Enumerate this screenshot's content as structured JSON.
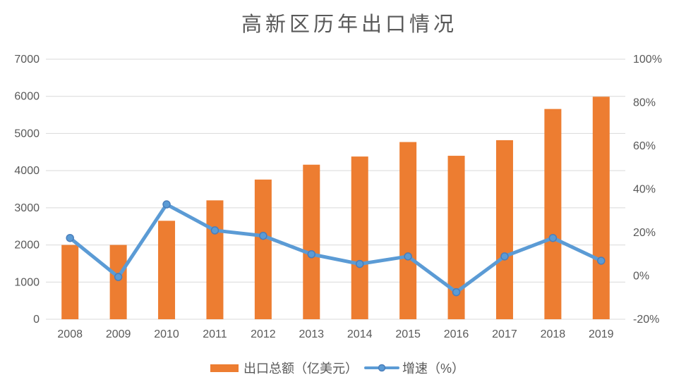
{
  "title": "高新区历年出口情况",
  "legend": {
    "bar_label": "出口总额（亿美元）",
    "line_label": "增速（%）"
  },
  "colors": {
    "bar": "#ED7D31",
    "line": "#5B9BD5",
    "marker_edge": "#4A7EBB",
    "grid": "#D9D9D9",
    "axis_text": "#595959",
    "title_text": "#595959",
    "background": "#FFFFFF"
  },
  "chart_data": {
    "type": "bar+line combo",
    "title": "高新区历年出口情况",
    "categories": [
      "2008",
      "2009",
      "2010",
      "2011",
      "2012",
      "2013",
      "2014",
      "2015",
      "2016",
      "2017",
      "2018",
      "2019"
    ],
    "series": [
      {
        "name": "出口总额（亿美元）",
        "type": "bar",
        "axis": "left",
        "color": "#ED7D31",
        "values": [
          2000,
          2000,
          2650,
          3200,
          3760,
          4160,
          4380,
          4770,
          4400,
          4820,
          5660,
          5990
        ]
      },
      {
        "name": "增速（%）",
        "type": "line",
        "axis": "right",
        "color": "#5B9BD5",
        "values": [
          17.5,
          -0.5,
          33,
          21,
          18.5,
          10,
          5.5,
          9,
          -7.5,
          9,
          17.5,
          7
        ]
      }
    ],
    "left_axis": {
      "min": 0,
      "max": 7000,
      "step": 1000,
      "tick_labels": [
        "0",
        "1000",
        "2000",
        "3000",
        "4000",
        "5000",
        "6000",
        "7000"
      ]
    },
    "right_axis": {
      "min": -20,
      "max": 100,
      "step": 20,
      "tick_labels": [
        "-20%",
        "0%",
        "20%",
        "40%",
        "60%",
        "80%",
        "100%"
      ]
    },
    "grid": true,
    "legend_position": "bottom"
  }
}
